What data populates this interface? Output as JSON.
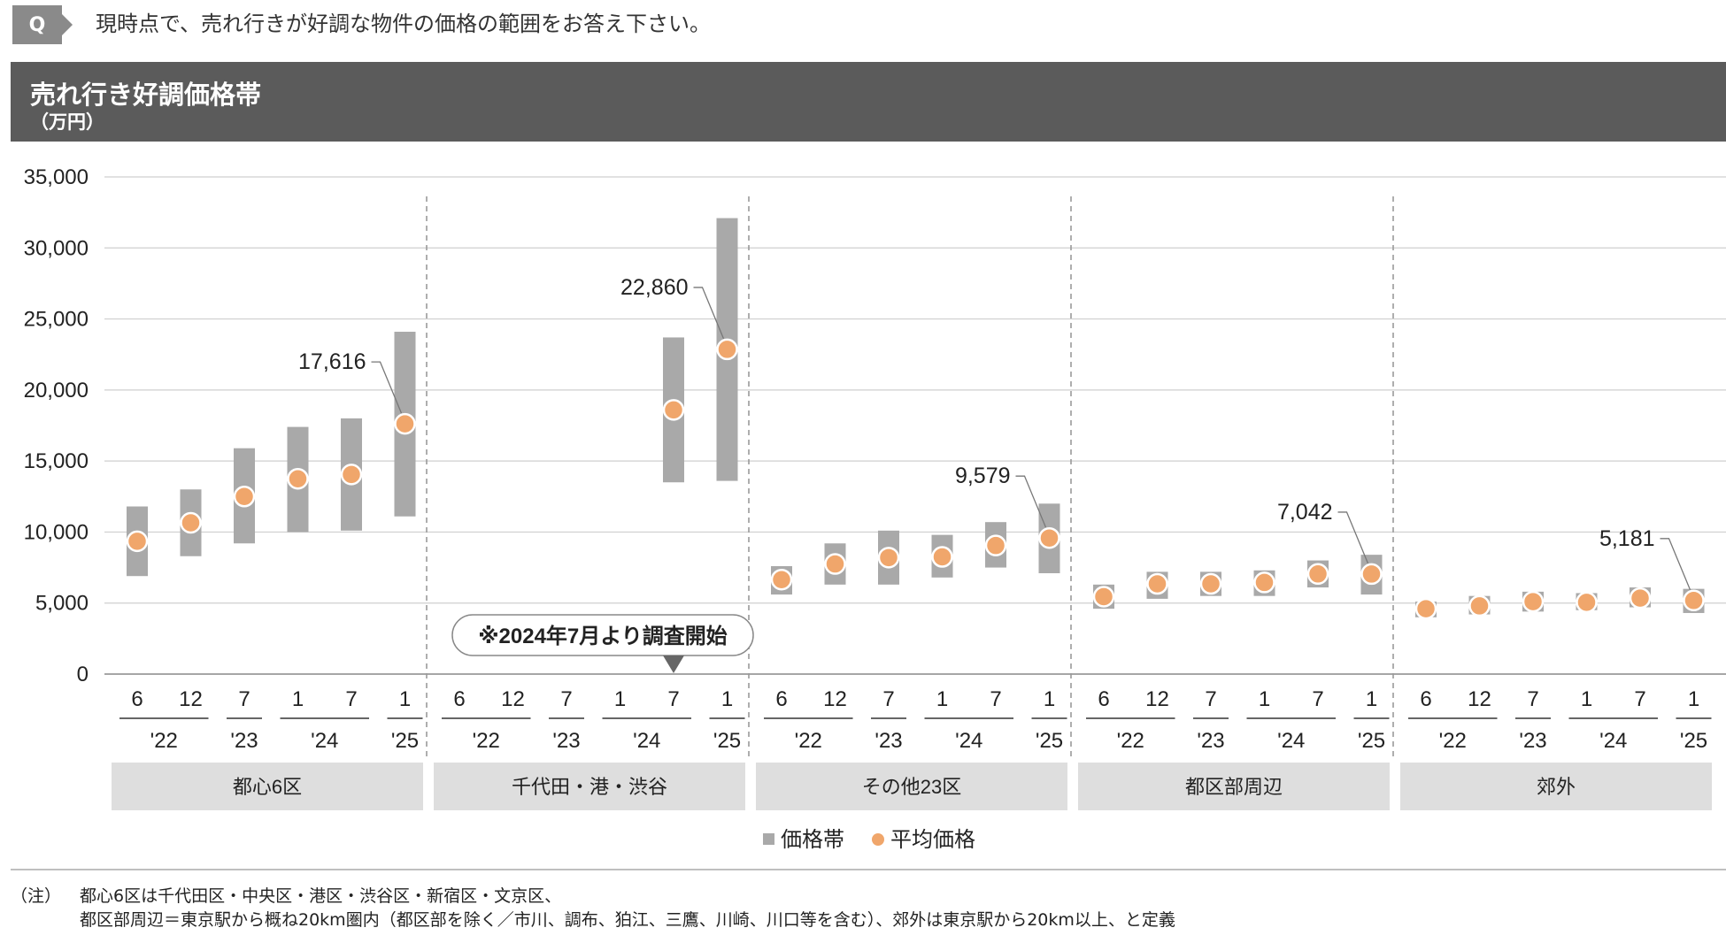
{
  "question": {
    "badge": "Q",
    "text": "現時点で、売れ行きが好調な物件の価格の範囲をお答え下さい。"
  },
  "header": {
    "title": "売れ行き好調価格帯",
    "unit": "（万円）"
  },
  "chart_data": {
    "type": "range-bar-with-points",
    "title": "売れ行き好調価格帯",
    "ylabel": "（万円）",
    "ylim": [
      0,
      35000
    ],
    "yticks": [
      "0",
      "5,000",
      "10,000",
      "15,000",
      "20,000",
      "25,000",
      "30,000",
      "35,000"
    ],
    "ytick_values": [
      0,
      5000,
      10000,
      15000,
      20000,
      25000,
      30000,
      35000
    ],
    "month_labels": [
      "6",
      "12",
      "7",
      "1",
      "7",
      "1"
    ],
    "year_groups": [
      {
        "label": "'22",
        "span": [
          0,
          1
        ]
      },
      {
        "label": "'23",
        "span": [
          2,
          2
        ]
      },
      {
        "label": "'24",
        "span": [
          3,
          4
        ]
      },
      {
        "label": "'25",
        "span": [
          5,
          5
        ]
      }
    ],
    "legend": {
      "range": "価格帯",
      "avg": "平均価格"
    },
    "colors": {
      "range": "#a9a9a9",
      "avg": "#f0a66b",
      "grid": "#cfcfcf",
      "divider": "#9a9a9a",
      "panel": "#dedede"
    },
    "callout_note": "※2024年7月より調査開始",
    "panels": [
      {
        "name": "都心6区",
        "periods": [
          {
            "low": 6900,
            "high": 11800,
            "avg": 9350
          },
          {
            "low": 8300,
            "high": 13000,
            "avg": 10650
          },
          {
            "low": 9200,
            "high": 15900,
            "avg": 12500
          },
          {
            "low": 10000,
            "high": 17400,
            "avg": 13750
          },
          {
            "low": 10100,
            "high": 18000,
            "avg": 14050
          },
          {
            "low": 11100,
            "high": 24100,
            "avg": 17616
          }
        ],
        "label": "17,616"
      },
      {
        "name": "千代田・港・渋谷",
        "periods": [
          null,
          null,
          null,
          null,
          {
            "low": 13500,
            "high": 23700,
            "avg": 18600
          },
          {
            "low": 13600,
            "high": 32100,
            "avg": 22860
          }
        ],
        "label": "22,860"
      },
      {
        "name": "その他23区",
        "periods": [
          {
            "low": 5600,
            "high": 7600,
            "avg": 6650
          },
          {
            "low": 6300,
            "high": 9200,
            "avg": 7750
          },
          {
            "low": 6300,
            "high": 10100,
            "avg": 8200
          },
          {
            "low": 6800,
            "high": 9800,
            "avg": 8250
          },
          {
            "low": 7500,
            "high": 10700,
            "avg": 9050
          },
          {
            "low": 7100,
            "high": 12000,
            "avg": 9579
          }
        ],
        "label": "9,579"
      },
      {
        "name": "都区部周辺",
        "periods": [
          {
            "low": 4600,
            "high": 6300,
            "avg": 5450
          },
          {
            "low": 5300,
            "high": 7200,
            "avg": 6350
          },
          {
            "low": 5500,
            "high": 7200,
            "avg": 6350
          },
          {
            "low": 5500,
            "high": 7300,
            "avg": 6450
          },
          {
            "low": 6100,
            "high": 8000,
            "avg": 7050
          },
          {
            "low": 5600,
            "high": 8400,
            "avg": 7042
          }
        ],
        "label": "7,042"
      },
      {
        "name": "郊外",
        "periods": [
          {
            "low": 4000,
            "high": 5100,
            "avg": 4600
          },
          {
            "low": 4200,
            "high": 5500,
            "avg": 4800
          },
          {
            "low": 4400,
            "high": 5800,
            "avg": 5100
          },
          {
            "low": 4500,
            "high": 5700,
            "avg": 5050
          },
          {
            "low": 4700,
            "high": 6100,
            "avg": 5350
          },
          {
            "low": 4300,
            "high": 6000,
            "avg": 5181
          }
        ],
        "label": "5,181"
      }
    ]
  },
  "notes": {
    "label": "（注）",
    "line1": "都心6区は千代田区・中央区・港区・渋谷区・新宿区・文京区、",
    "line2": "都区部周辺＝東京駅から概ね20km圏内（都区部を除く／市川、調布、狛江、三鷹、川崎、川口等を含む）、郊外は東京駅から20km以上、と定義"
  }
}
